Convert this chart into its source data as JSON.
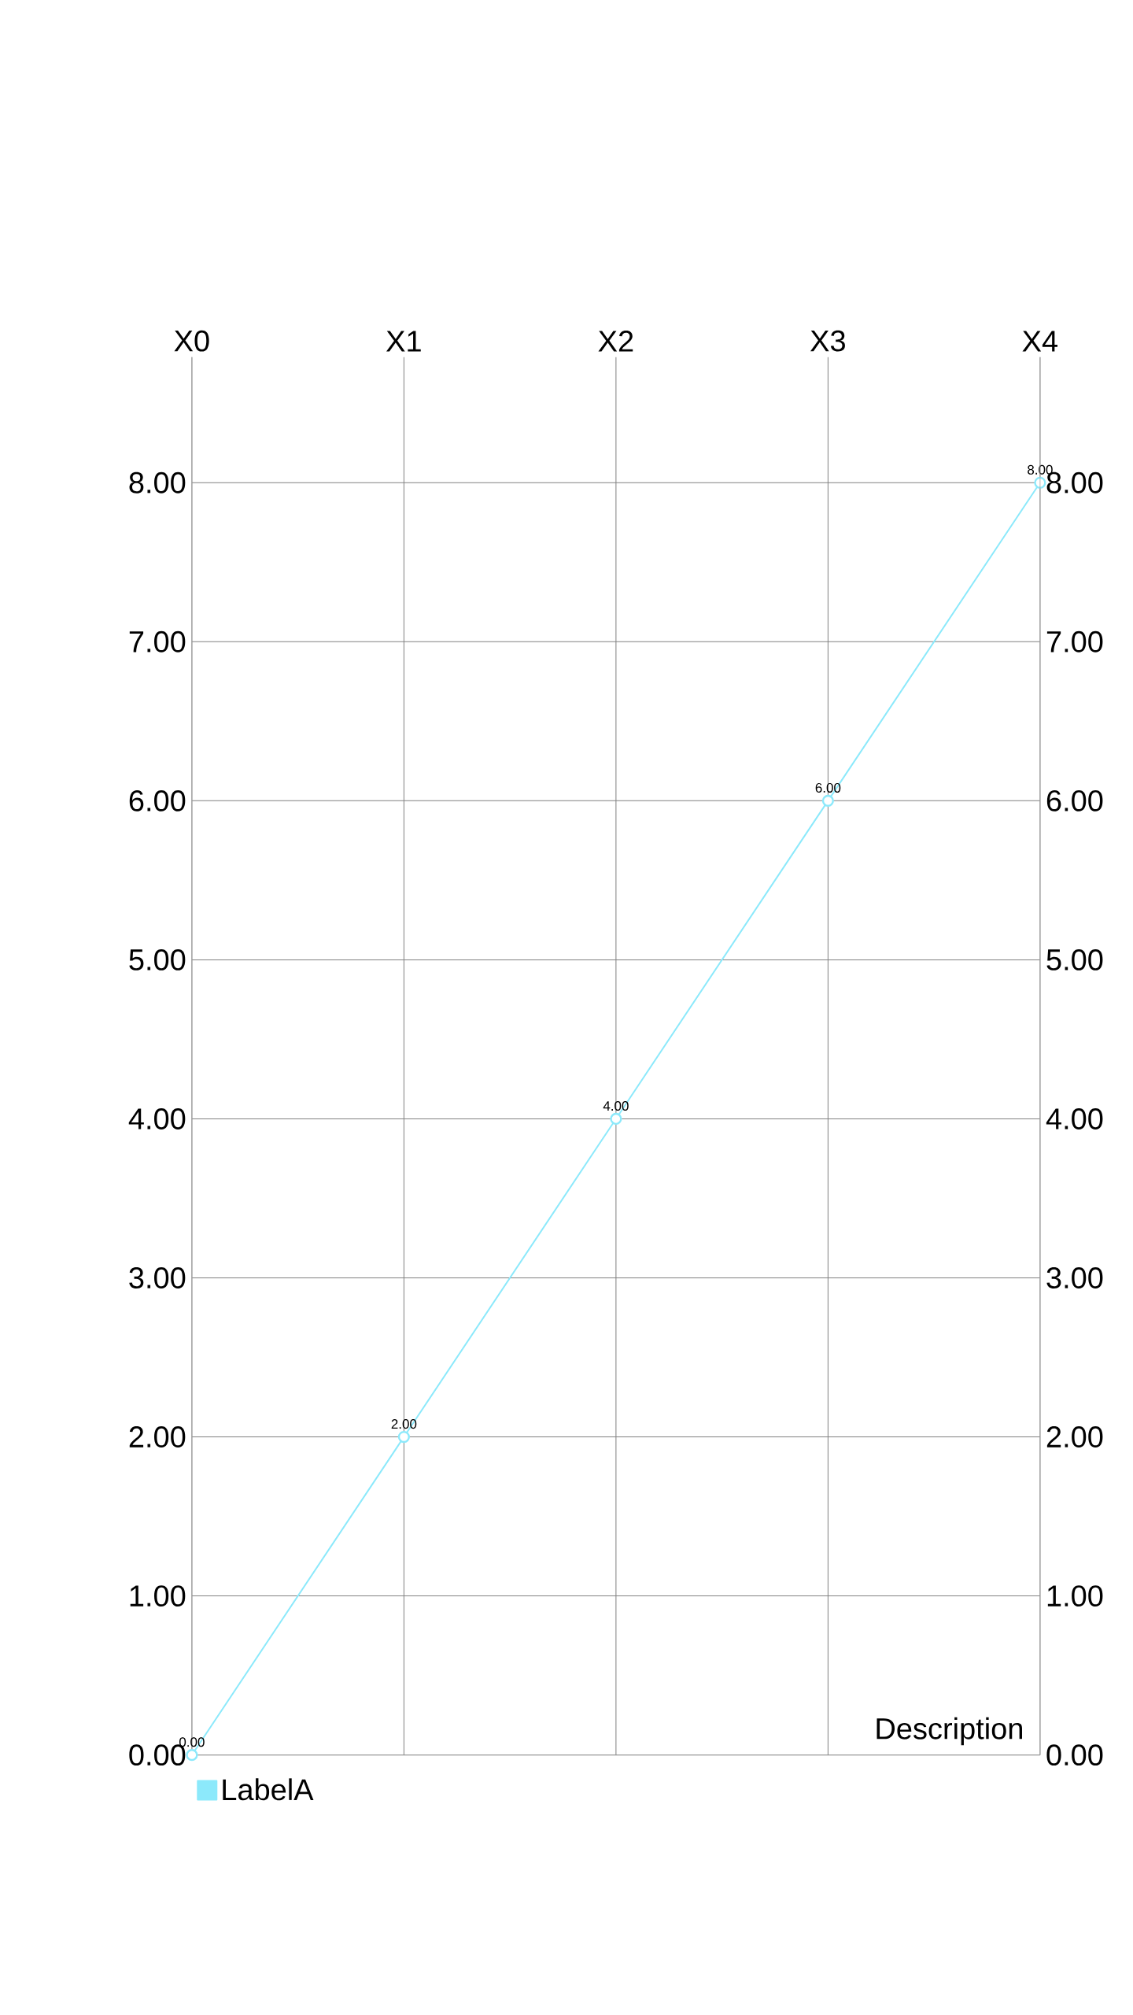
{
  "chart_data": {
    "type": "line",
    "categories": [
      "X0",
      "X1",
      "X2",
      "X3",
      "X4"
    ],
    "series": [
      {
        "name": "LabelA",
        "color": "#8ce9fb",
        "values": [
          0,
          2,
          4,
          6,
          8
        ],
        "value_labels": [
          "0.00",
          "2.00",
          "4.00",
          "6.00",
          "8.00"
        ]
      }
    ],
    "ylim": [
      0,
      8.79
    ],
    "yticks": [
      {
        "value": 0,
        "label": "0.00"
      },
      {
        "value": 1,
        "label": "1.00"
      },
      {
        "value": 2,
        "label": "2.00"
      },
      {
        "value": 3,
        "label": "3.00"
      },
      {
        "value": 4,
        "label": "4.00"
      },
      {
        "value": 5,
        "label": "5.00"
      },
      {
        "value": 6,
        "label": "6.00"
      },
      {
        "value": 7,
        "label": "7.00"
      },
      {
        "value": 8,
        "label": "8.00"
      }
    ],
    "y2lim": [
      0,
      8.79
    ],
    "y2ticks": [
      {
        "value": 0,
        "label": "0.00"
      },
      {
        "value": 1,
        "label": "1.00"
      },
      {
        "value": 2,
        "label": "2.00"
      },
      {
        "value": 3,
        "label": "3.00"
      },
      {
        "value": 4,
        "label": "4.00"
      },
      {
        "value": 5,
        "label": "5.00"
      },
      {
        "value": 6,
        "label": "6.00"
      },
      {
        "value": 7,
        "label": "7.00"
      },
      {
        "value": 8,
        "label": "8.00"
      }
    ],
    "annotations": [
      "Description"
    ],
    "grid": true,
    "legend": "bottom left",
    "marker": "circle",
    "line_style": "solid"
  }
}
